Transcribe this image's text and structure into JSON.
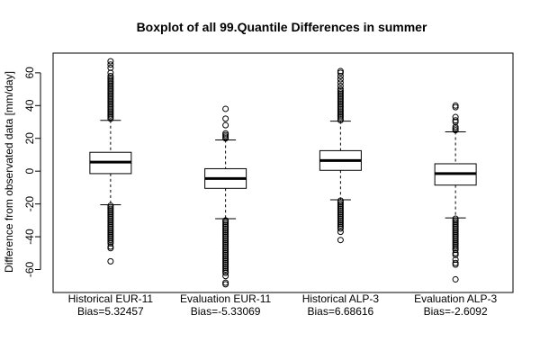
{
  "chart_data": {
    "type": "boxplot",
    "title": "Boxplot of all 99.Quantile Differences in summer",
    "ylabel": "Difference from observated data [mm/day]",
    "xlabel": "",
    "ylim": [
      -74,
      72
    ],
    "yticks": [
      -60,
      -40,
      -20,
      0,
      20,
      40,
      60
    ],
    "grid": false,
    "legend": "none",
    "categories": [
      "Historical EUR-11\nBias=5.32457",
      "Evaluation EUR-11\nBias=-5.33069",
      "Historical ALP-3\nBias=6.68616",
      "Evaluation ALP-3\nBias=-2.6092"
    ],
    "boxes": [
      {
        "name": "Historical EUR-11",
        "bias_label": "Bias=5.32457",
        "whisker_low": -20.5,
        "q1": -1.5,
        "median": 5.5,
        "q3": 11.5,
        "whisker_high": 31,
        "outliers_high": [
          32,
          33,
          34,
          35,
          36,
          37,
          38,
          39,
          40,
          41,
          42,
          43,
          44,
          45,
          46,
          47,
          48,
          49,
          50,
          51,
          52,
          53,
          54,
          55,
          56,
          57,
          58,
          60,
          63,
          65,
          67
        ],
        "outliers_low": [
          -21,
          -22,
          -23,
          -24,
          -25,
          -26,
          -27,
          -28,
          -29,
          -30,
          -31,
          -32,
          -33,
          -34,
          -35,
          -36,
          -37,
          -38,
          -39,
          -40,
          -41,
          -42,
          -43,
          -44,
          -46,
          -47,
          -55
        ]
      },
      {
        "name": "Evaluation EUR-11",
        "bias_label": "Bias=-5.33069",
        "whisker_low": -29,
        "q1": -10.5,
        "median": -4.5,
        "q3": 1.5,
        "whisker_high": 19,
        "outliers_high": [
          20,
          21,
          22,
          23,
          28,
          32,
          38
        ],
        "outliers_low": [
          -30,
          -31,
          -32,
          -33,
          -34,
          -35,
          -36,
          -37,
          -38,
          -39,
          -40,
          -41,
          -42,
          -43,
          -44,
          -45,
          -46,
          -47,
          -48,
          -49,
          -50,
          -51,
          -52,
          -53,
          -54,
          -55,
          -56,
          -57,
          -58,
          -59,
          -60,
          -61,
          -62,
          -64,
          -68,
          -69
        ]
      },
      {
        "name": "Historical ALP-3",
        "bias_label": "Bias=6.68616",
        "whisker_low": -17.5,
        "q1": 0.5,
        "median": 6.5,
        "q3": 12.5,
        "whisker_high": 30.5,
        "outliers_high": [
          31,
          32,
          33,
          34,
          35,
          36,
          37,
          38,
          39,
          40,
          41,
          42,
          43,
          44,
          45,
          46,
          47,
          48,
          49,
          50,
          52,
          54,
          56,
          58,
          60,
          61
        ],
        "outliers_low": [
          -18,
          -19,
          -20,
          -21,
          -22,
          -23,
          -24,
          -25,
          -26,
          -27,
          -28,
          -29,
          -30,
          -31,
          -32,
          -33,
          -34,
          -35,
          -37,
          -42
        ]
      },
      {
        "name": "Evaluation ALP-3",
        "bias_label": "Bias=-2.6092",
        "whisker_low": -28.5,
        "q1": -8.5,
        "median": -1.5,
        "q3": 4.5,
        "whisker_high": 24,
        "outliers_high": [
          25,
          26,
          27,
          30,
          31,
          33,
          39,
          40
        ],
        "outliers_low": [
          -29,
          -30,
          -31,
          -32,
          -33,
          -34,
          -35,
          -36,
          -37,
          -38,
          -39,
          -40,
          -41,
          -42,
          -43,
          -44,
          -45,
          -46,
          -47,
          -48,
          -50,
          -51,
          -54,
          -56,
          -57,
          -66
        ]
      }
    ]
  }
}
